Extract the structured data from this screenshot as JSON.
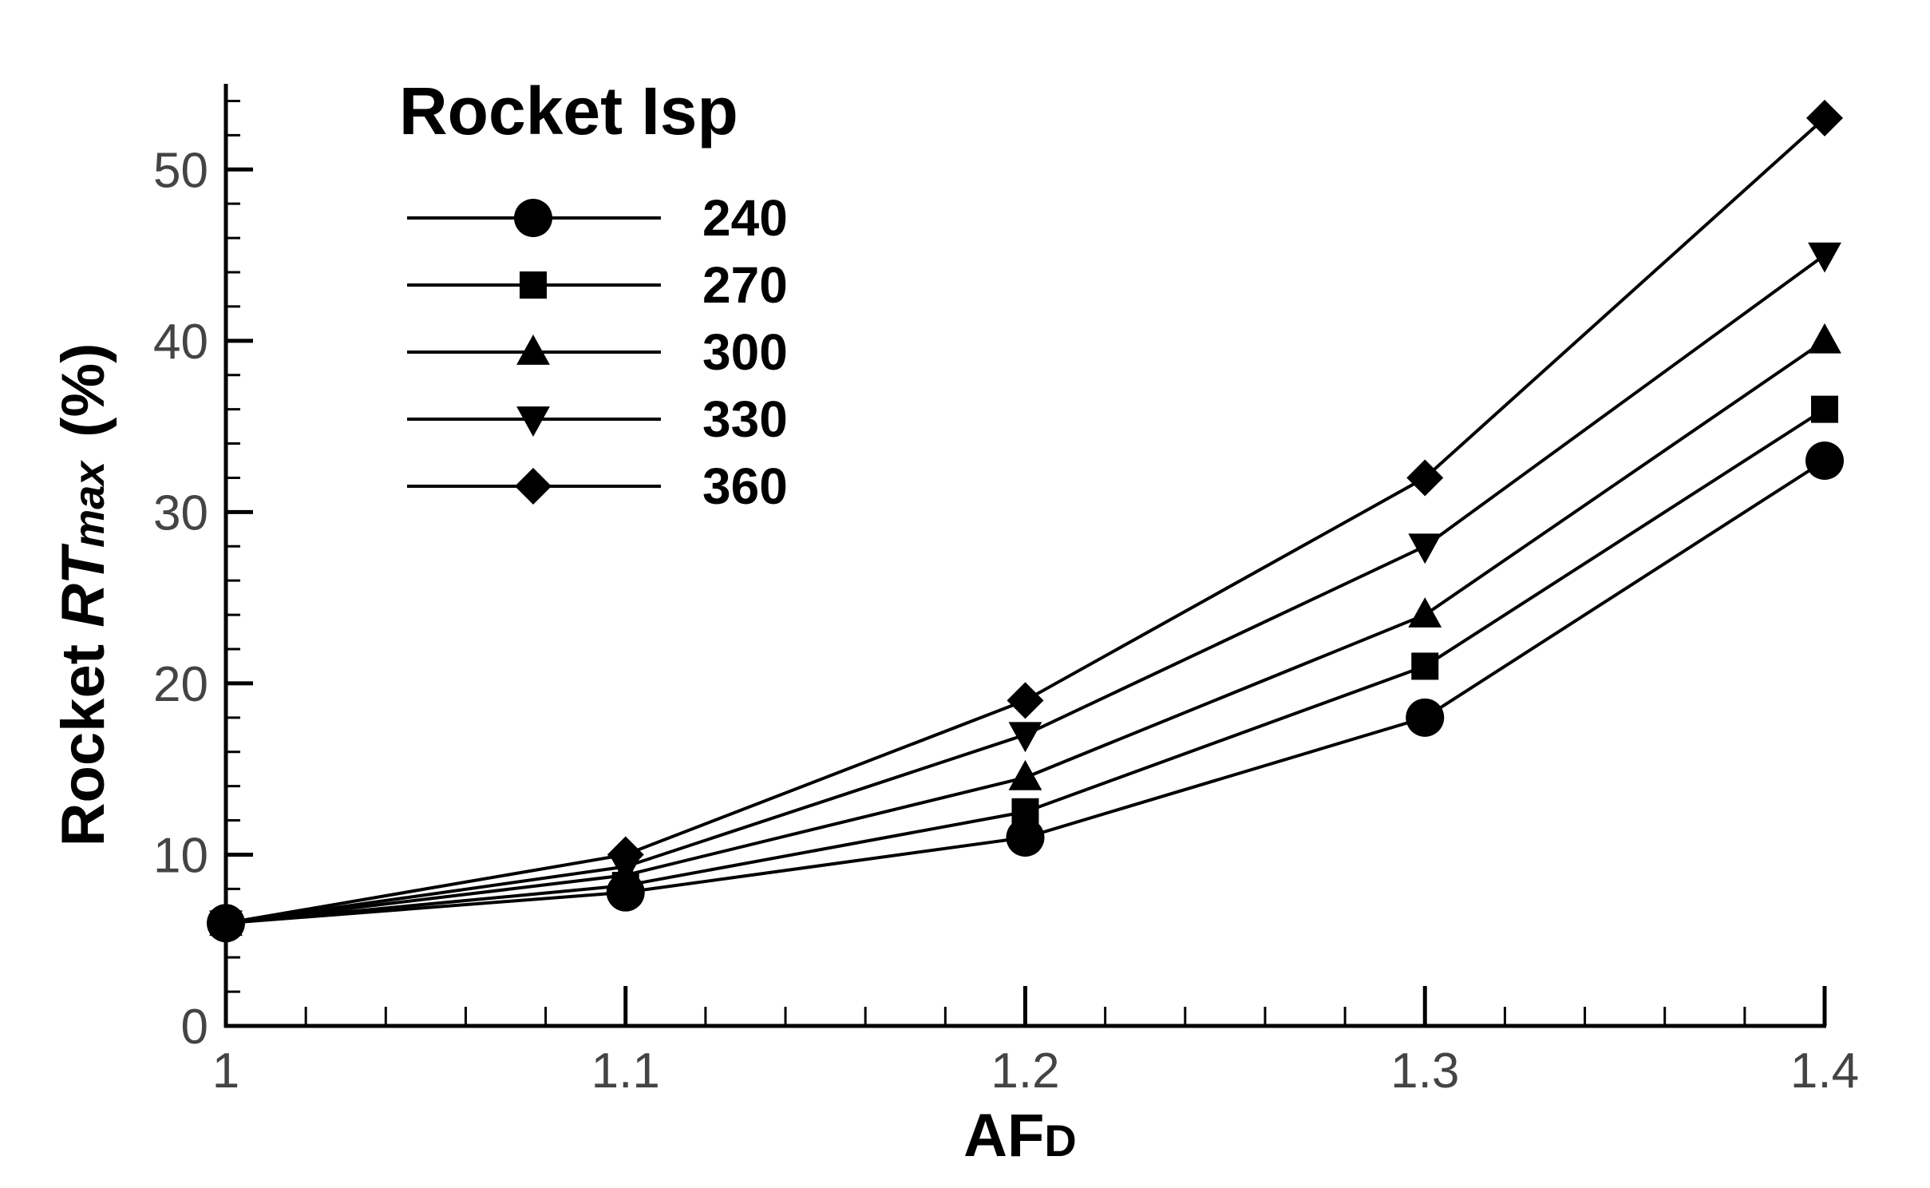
{
  "chart_data": {
    "type": "line",
    "title": "",
    "xlabel_main": "AF",
    "xlabel_sub": "D",
    "ylabel_prefix": "Rocket ",
    "ylabel_italic": "RT",
    "ylabel_sub": "max",
    "ylabel_suffix": "(%)",
    "x": [
      1,
      1.1,
      1.2,
      1.3,
      1.4
    ],
    "xlim": [
      1,
      1.4
    ],
    "ylim": [
      0,
      55
    ],
    "xticks": [
      "1",
      "1.1",
      "1.2",
      "1.3",
      "1.4"
    ],
    "yticks": [
      "0",
      "10",
      "20",
      "30",
      "40",
      "50"
    ],
    "grid": false,
    "legend_title": "Rocket Isp",
    "legend_position": "top-left",
    "colors": {
      "line": "#000000",
      "axis": "#000000",
      "tick_label": "#444444"
    },
    "series": [
      {
        "name": "240",
        "marker": "circle",
        "values": [
          6,
          7.8,
          11,
          18,
          33
        ]
      },
      {
        "name": "270",
        "marker": "square",
        "values": [
          6,
          8.2,
          12.5,
          21,
          36
        ]
      },
      {
        "name": "300",
        "marker": "triangle-up",
        "values": [
          6,
          8.8,
          14.5,
          24,
          40
        ]
      },
      {
        "name": "330",
        "marker": "triangle-down",
        "values": [
          6,
          9.3,
          17,
          28,
          45
        ]
      },
      {
        "name": "360",
        "marker": "diamond",
        "values": [
          6,
          10,
          19,
          32,
          53
        ]
      }
    ]
  }
}
